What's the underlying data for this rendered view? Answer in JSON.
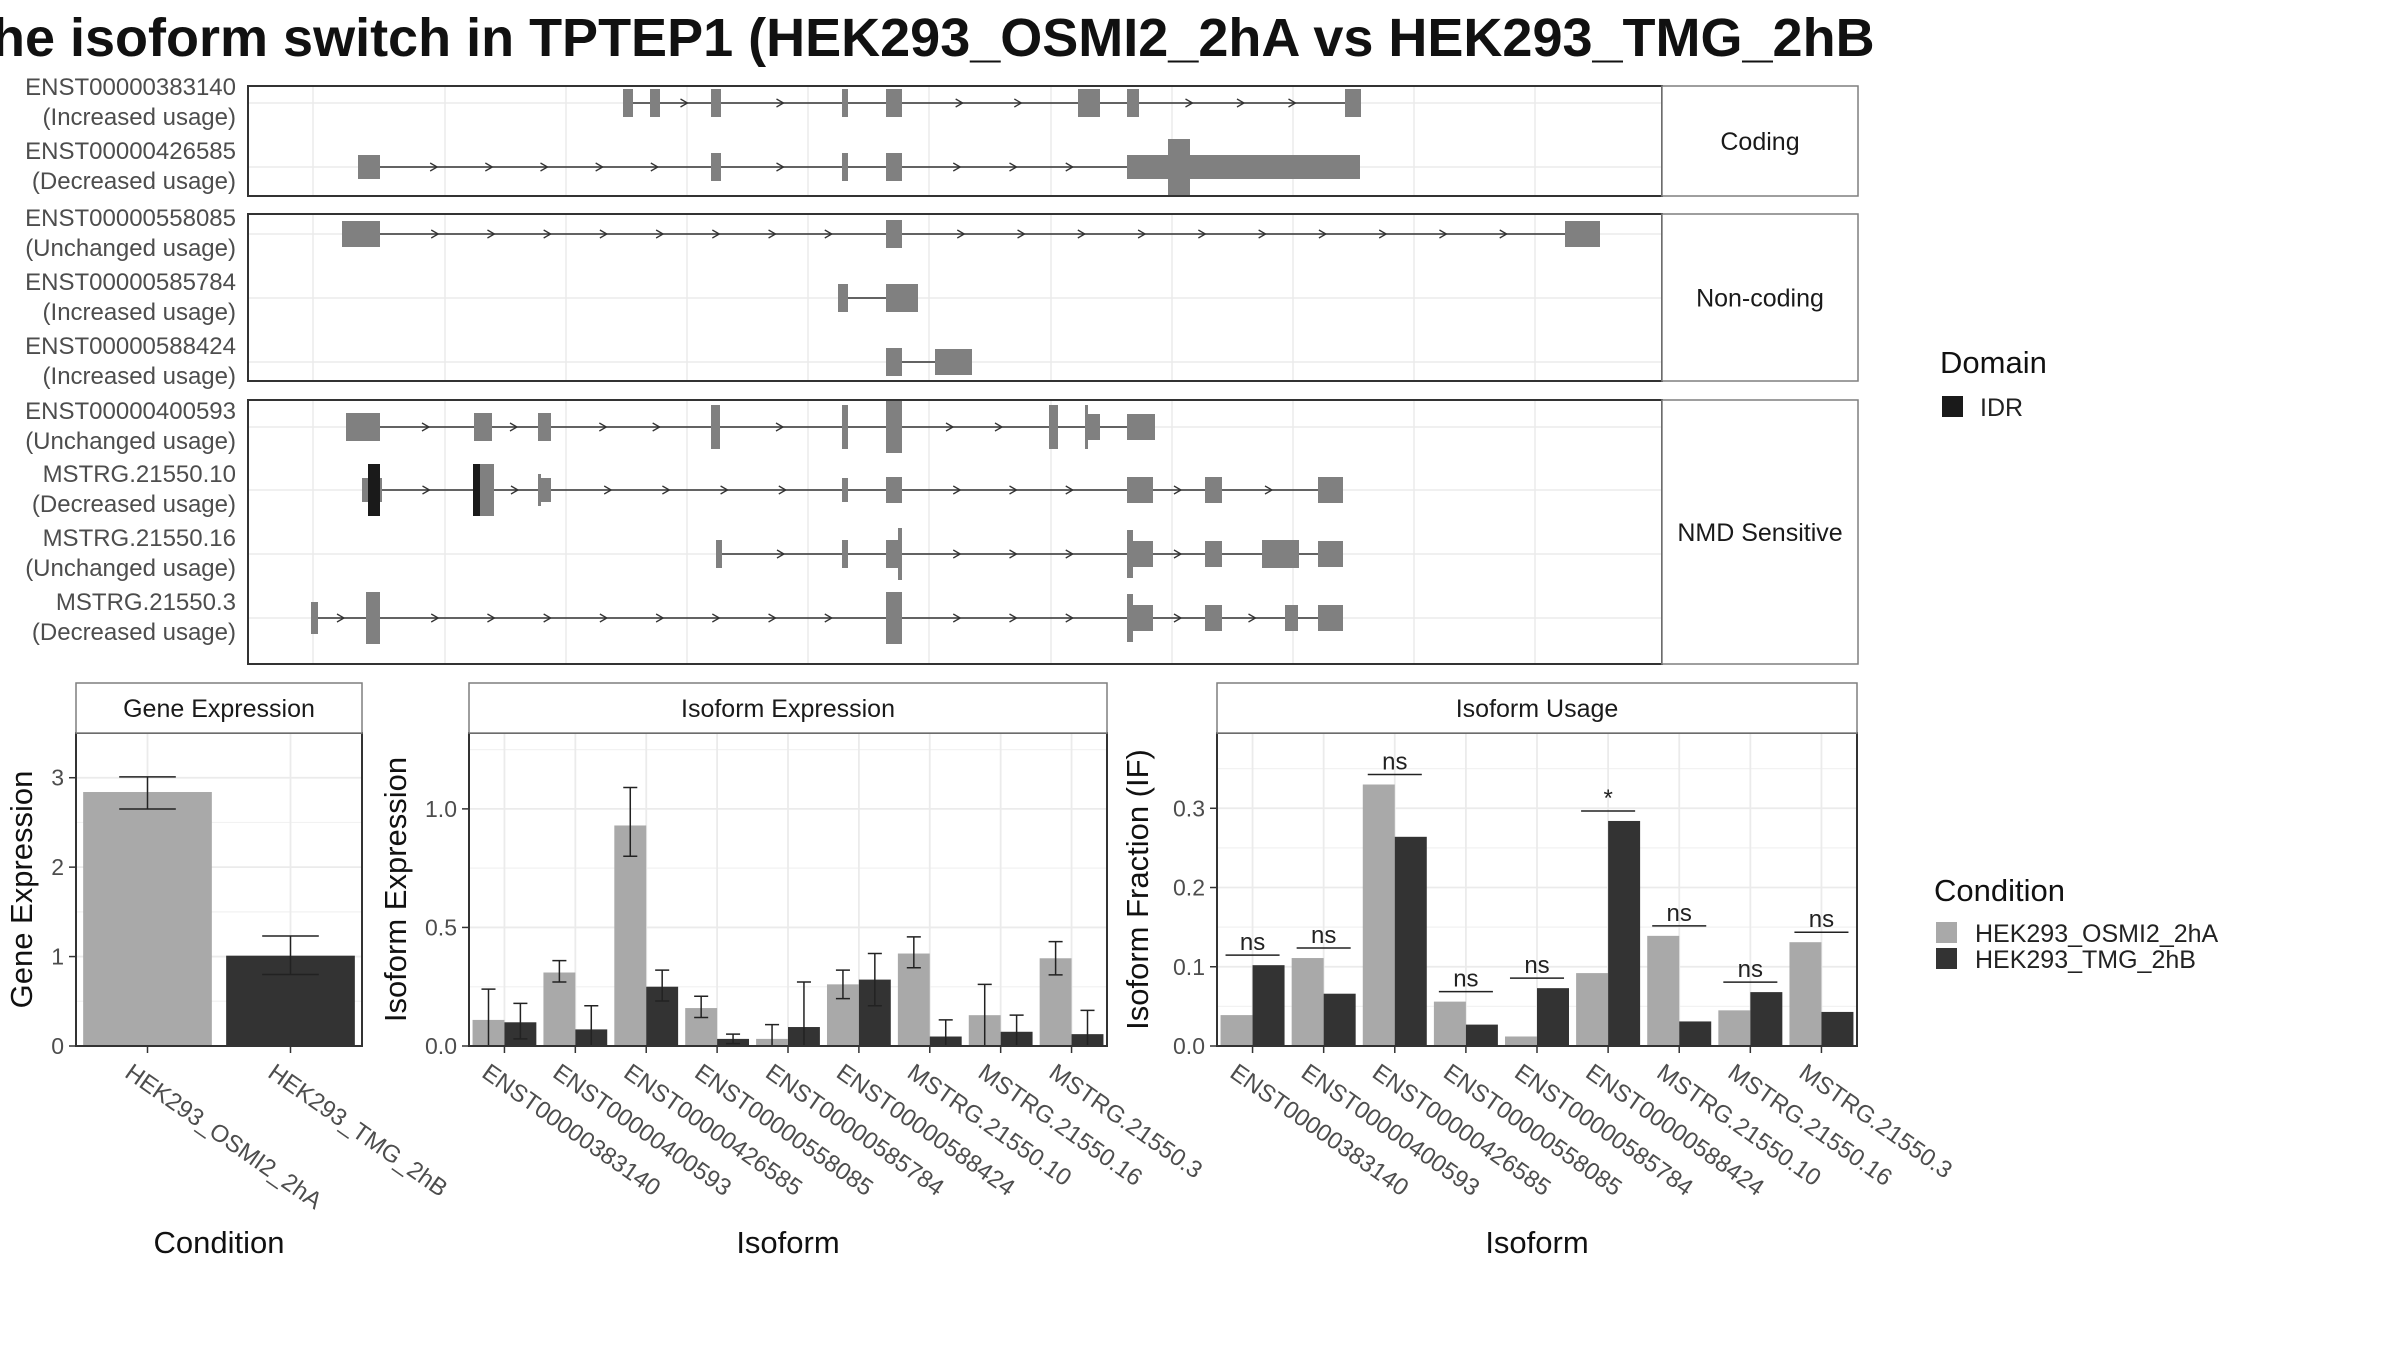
{
  "title": "he isoform switch in TPTEP1 (HEK293_OSMI2_2hA vs HEK293_TMG_2hB",
  "structure": {
    "groups": [
      {
        "name": "Coding",
        "transcripts": [
          {
            "id": "ENST00000383140",
            "usage": "(Increased usage)"
          },
          {
            "id": "ENST00000426585",
            "usage": "(Decreased usage)"
          }
        ]
      },
      {
        "name": "Non-coding",
        "transcripts": [
          {
            "id": "ENST00000558085",
            "usage": "(Unchanged usage)"
          },
          {
            "id": "ENST00000585784",
            "usage": "(Increased usage)"
          },
          {
            "id": "ENST00000588424",
            "usage": "(Increased usage)"
          }
        ]
      },
      {
        "name": "NMD Sensitive",
        "transcripts": [
          {
            "id": "ENST00000400593",
            "usage": "(Unchanged usage)"
          },
          {
            "id": "MSTRG.21550.10",
            "usage": "(Decreased usage)"
          },
          {
            "id": "MSTRG.21550.16",
            "usage": "(Unchanged usage)"
          },
          {
            "id": "MSTRG.21550.3",
            "usage": "(Decreased usage)"
          }
        ]
      }
    ]
  },
  "legend_domain": {
    "title": "Domain",
    "items": [
      {
        "name": "IDR",
        "color": "#1a1a1a"
      }
    ]
  },
  "legend_condition": {
    "title": "Condition",
    "items": [
      {
        "name": "HEK293_OSMI2_2hA",
        "color": "#a9a9a9"
      },
      {
        "name": "HEK293_TMG_2hB",
        "color": "#333333"
      }
    ]
  },
  "chart_data": [
    {
      "type": "bar",
      "title": "Gene Expression",
      "xlabel": "Condition",
      "ylabel": "Gene Expression",
      "categories": [
        "HEK293_OSMI2_2hA",
        "HEK293_TMG_2hB"
      ],
      "values": [
        2.84,
        1.01
      ],
      "error": [
        [
          2.65,
          3.01
        ],
        [
          0.8,
          1.23
        ]
      ],
      "ylim": [
        0,
        3.5
      ],
      "yticks": [
        "0",
        "1",
        "2",
        "3"
      ]
    },
    {
      "type": "bar",
      "title": "Isoform Expression",
      "xlabel": "Isoform",
      "ylabel": "Isoform Expression",
      "categories": [
        "ENST00000383140",
        "ENST00000400593",
        "ENST00000426585",
        "ENST00000558085",
        "ENST00000585784",
        "ENST00000588424",
        "MSTRG.21550.10",
        "MSTRG.21550.16",
        "MSTRG.21550.3"
      ],
      "series": [
        {
          "values": [
            0.11,
            0.31,
            0.93,
            0.16,
            0.03,
            0.26,
            0.39,
            0.13,
            0.37
          ],
          "error": [
            [
              0.0,
              0.24
            ],
            [
              0.27,
              0.36
            ],
            [
              0.8,
              1.09
            ],
            [
              0.12,
              0.21
            ],
            [
              0.0,
              0.09
            ],
            [
              0.2,
              0.32
            ],
            [
              0.33,
              0.46
            ],
            [
              0.0,
              0.26
            ],
            [
              0.3,
              0.44
            ]
          ]
        },
        {
          "values": [
            0.1,
            0.07,
            0.25,
            0.03,
            0.08,
            0.28,
            0.04,
            0.06,
            0.05
          ],
          "error": [
            [
              0.03,
              0.18
            ],
            [
              0.0,
              0.17
            ],
            [
              0.19,
              0.32
            ],
            [
              0.01,
              0.05
            ],
            [
              0.0,
              0.27
            ],
            [
              0.17,
              0.39
            ],
            [
              0.0,
              0.11
            ],
            [
              0.0,
              0.13
            ],
            [
              0.0,
              0.15
            ]
          ]
        }
      ],
      "ylim": [
        0,
        1.32
      ],
      "yticks": [
        "0.0",
        "0.5",
        "1.0"
      ]
    },
    {
      "type": "bar",
      "title": "Isoform Usage",
      "xlabel": "Isoform",
      "ylabel": "Isoform Fraction (IF)",
      "categories": [
        "ENST00000383140",
        "ENST00000400593",
        "ENST00000426585",
        "ENST00000558085",
        "ENST00000585784",
        "ENST00000588424",
        "MSTRG.21550.10",
        "MSTRG.21550.16",
        "MSTRG.21550.3"
      ],
      "series": [
        {
          "values": [
            0.039,
            0.111,
            0.33,
            0.056,
            0.012,
            0.092,
            0.139,
            0.045,
            0.131
          ]
        },
        {
          "values": [
            0.102,
            0.066,
            0.264,
            0.027,
            0.073,
            0.284,
            0.031,
            0.068,
            0.043
          ]
        }
      ],
      "significance": [
        "ns",
        "ns",
        "ns",
        "ns",
        "ns",
        "*",
        "ns",
        "ns",
        "ns"
      ],
      "ylim": [
        0,
        0.395
      ],
      "yticks": [
        "0.0",
        "0.1",
        "0.2",
        "0.3"
      ]
    }
  ]
}
